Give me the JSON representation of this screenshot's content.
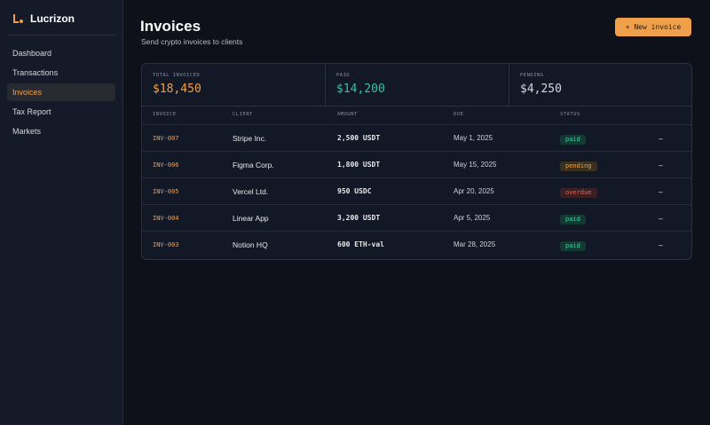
{
  "sidebar": {
    "brand": "Lucrizon",
    "nav": [
      "Dashboard",
      "Transactions",
      "Invoices",
      "Tax Report",
      "Markets"
    ]
  },
  "header": {
    "title": "Invoices",
    "subtitle": "Send crypto invoices to clients",
    "button": "+ New invoice"
  },
  "stats": [
    {
      "label": "TOTAL INVOICED",
      "value": "$18,450"
    },
    {
      "label": "PAID",
      "value": "$14,200"
    },
    {
      "label": "PENDING",
      "value": "$4,250"
    }
  ],
  "table": {
    "columns": [
      "INVOICE",
      "CLIENT",
      "AMOUNT",
      "DUE",
      "STATUS"
    ],
    "rows": [
      [
        "INV-007",
        "Stripe Inc.",
        "2,500 USDT",
        "May 1, 2025",
        "paid",
        "–"
      ],
      [
        "INV-006",
        "Figma Corp.",
        "1,800 USDT",
        "May 15, 2025",
        "pending",
        "–"
      ],
      [
        "INV-005",
        "Vercel Ltd.",
        "950 USDC",
        "Apr 20, 2025",
        "overdue",
        "–"
      ],
      [
        "INV-004",
        "Linear App",
        "3,200 USDT",
        "Apr 5, 2025",
        "paid",
        "–"
      ],
      [
        "INV-003",
        "Notion HQ",
        "600 ETH-val",
        "Mar 28, 2025",
        "paid",
        "–"
      ]
    ]
  }
}
